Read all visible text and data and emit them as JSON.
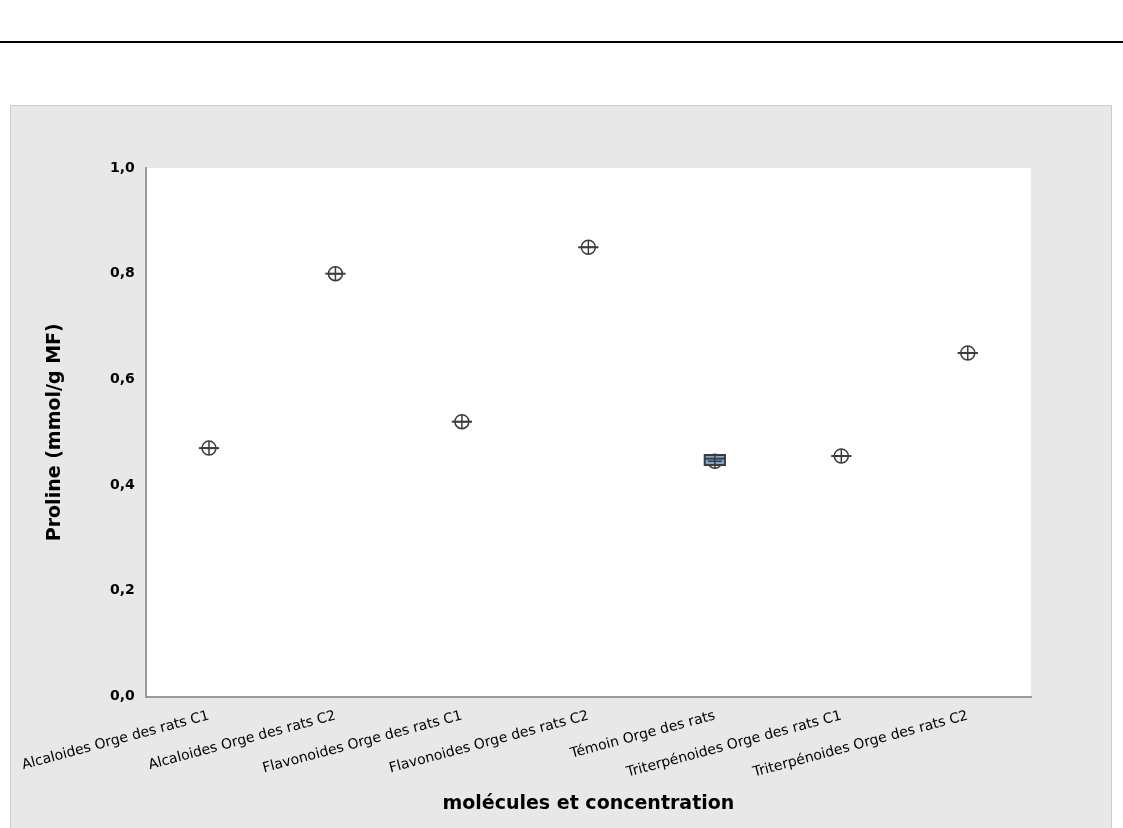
{
  "chart_data": {
    "type": "box",
    "xlabel": "molécules et concentration",
    "ylabel": "Proline (mmol/g MF)",
    "categories": [
      "Alcaloides Orge des rats C1",
      "Alcaloides Orge des rats C2",
      "Flavonoides Orge des rats C1",
      "Flavonoides Orge des rats C2",
      "Témoin Orge des rats",
      "Triterpénoides Orge des rats C1",
      "Triterpénoides Orge des rats C2"
    ],
    "boxes": [
      {
        "low": 0.47,
        "q1": 0.47,
        "median": 0.47,
        "q3": 0.47,
        "high": 0.47,
        "mean": 0.47
      },
      {
        "low": 0.8,
        "q1": 0.8,
        "median": 0.8,
        "q3": 0.8,
        "high": 0.8,
        "mean": 0.8
      },
      {
        "low": 0.52,
        "q1": 0.52,
        "median": 0.52,
        "q3": 0.52,
        "high": 0.52,
        "mean": 0.52
      },
      {
        "low": 0.85,
        "q1": 0.85,
        "median": 0.85,
        "q3": 0.85,
        "high": 0.85,
        "mean": 0.85
      },
      {
        "low": 0.44,
        "q1": 0.44,
        "median": 0.45,
        "q3": 0.455,
        "high": 0.455,
        "mean": 0.445
      },
      {
        "low": 0.455,
        "q1": 0.455,
        "median": 0.455,
        "q3": 0.455,
        "high": 0.455,
        "mean": 0.455
      },
      {
        "low": 0.65,
        "q1": 0.65,
        "median": 0.65,
        "q3": 0.65,
        "high": 0.65,
        "mean": 0.65
      }
    ],
    "colors": [
      "#3c3c3c",
      "#3c3c3c",
      "#3c3c3c",
      "#3c3c3c",
      "#7ba7dc",
      "#3c3c3c",
      "#3c3c3c"
    ],
    "marker": "circle",
    "ylim": [
      0,
      1
    ],
    "yticks": [
      {
        "value": 0,
        "label": "0,0"
      },
      {
        "value": 0.2,
        "label": "0,2"
      },
      {
        "value": 0.4,
        "label": "0,4"
      },
      {
        "value": 0.6,
        "label": "0,6"
      },
      {
        "value": 0.8,
        "label": "0,8"
      },
      {
        "value": 1,
        "label": "1,0"
      }
    ],
    "grid": false,
    "legend": false
  }
}
